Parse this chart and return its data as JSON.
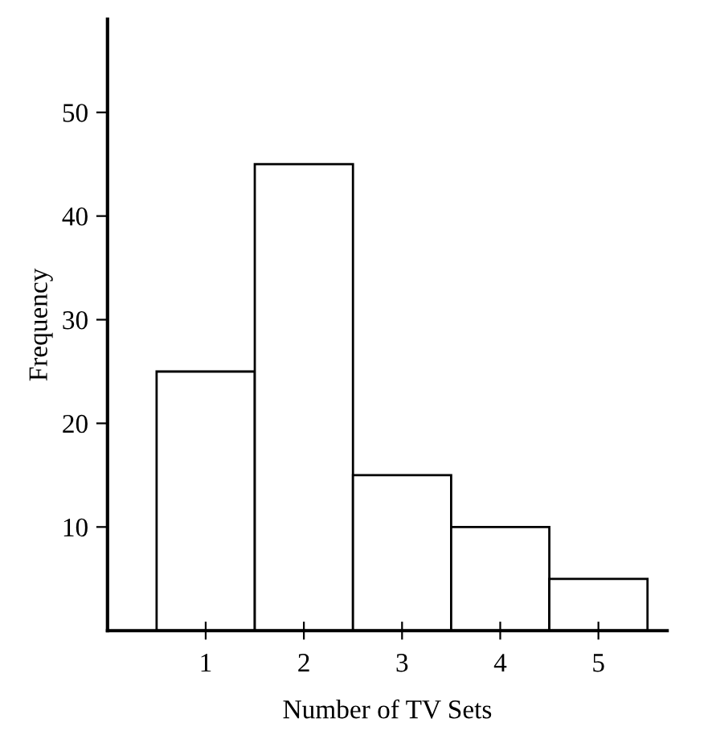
{
  "chart_data": {
    "type": "histogram",
    "xlabel": "Number of TV Sets",
    "ylabel": "Frequency",
    "bins": [
      0.5,
      1.5,
      2.5,
      3.5,
      4.5,
      5.5
    ],
    "values": [
      25,
      45,
      15,
      10,
      5
    ],
    "color": "#ffffff",
    "xlim": [
      0,
      5.7
    ],
    "xticks": [
      1,
      2,
      3,
      4,
      5
    ],
    "ylim": [
      0,
      59
    ],
    "yticks": [
      10,
      20,
      30,
      40,
      50
    ],
    "grid": false
  }
}
